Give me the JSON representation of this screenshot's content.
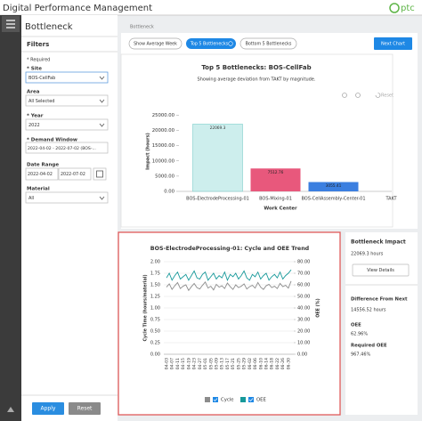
{
  "header": {
    "title": "Digital Performance Management",
    "logo": "ptc"
  },
  "sidebar": {
    "title": "Bottleneck",
    "filters_title": "Filters",
    "required_note": "* Required",
    "site": {
      "label": "* Site",
      "value": "BOS-CellFab"
    },
    "area": {
      "label": "Area",
      "value": "All Selected"
    },
    "year": {
      "label": "* Year",
      "value": "2022"
    },
    "demand_window": {
      "label": "* Demand Window",
      "value": "2022-04-02 - 2022-07-02 (BOS-..."
    },
    "date_range": {
      "label": "Date Range",
      "from": "2022-04-02",
      "to": "2022-07-02"
    },
    "material": {
      "label": "Material",
      "value": "All"
    },
    "apply": "Apply",
    "reset": "Reset"
  },
  "main": {
    "breadcrumb": "Bottleneck",
    "tabs": [
      "Show Average Week",
      "Top 5 Bottlenecks",
      "Bottom 5 Bottlenecks"
    ],
    "next_chart": "Next Chart",
    "toolbar_reset": "Reset"
  },
  "chart_data": [
    {
      "type": "bar",
      "title": "Top 5 Bottlenecks: BOS-CellFab",
      "subtitle": "Showing average deviation from TAKT by magnitude.",
      "x_label": "Work Center",
      "y_label": "Impact (hours)",
      "categories": [
        "BOS-ElectrodeProcessing-01",
        "BOS-Mixing-01",
        "BOS-CellAssembly-Center-01",
        "TAKT"
      ],
      "values": [
        22069.3,
        7512.76,
        3055.41,
        null
      ],
      "colors": [
        "#cdeeed",
        "#e8587c",
        "#3b7fe0",
        null
      ],
      "ylim": [
        0,
        26000
      ],
      "yticks": [
        {
          "value": 0,
          "label": "0.00"
        },
        {
          "value": 5000,
          "label": "5000.00"
        },
        {
          "value": 10000,
          "label": "10000.00"
        },
        {
          "value": 15000,
          "label": "15000.00"
        },
        {
          "value": 20000,
          "label": "20000.00"
        },
        {
          "value": 25000,
          "label": "25000.00"
        }
      ]
    },
    {
      "type": "line",
      "title": "BOS-ElectrodeProcessing-01: Cycle and OEE Trend",
      "y_label": "Cycle Time (hours/material)",
      "y2_label": "OEE (%)",
      "categories": [
        "04-03",
        null,
        "04-07",
        null,
        "04-11",
        null,
        "04-15",
        null,
        "04-19",
        null,
        "04-23",
        null,
        "04-27",
        null,
        "05-01",
        null,
        "05-05",
        null,
        "05-09",
        null,
        "05-13",
        null,
        "05-17",
        null,
        "05-21",
        null,
        "05-25",
        null,
        "05-29",
        null,
        "06-02",
        null,
        "06-06",
        null,
        "06-10",
        null,
        "06-14",
        null,
        "06-18",
        null,
        "06-22",
        null,
        "06-26",
        null,
        "06-30",
        null
      ],
      "series": [
        {
          "name": "Cycle",
          "color": "#8c8c8c",
          "values": [
            1.45,
            1.52,
            1.4,
            1.48,
            1.55,
            1.42,
            1.47,
            1.5,
            1.38,
            1.46,
            1.53,
            1.44,
            1.41,
            1.49,
            1.56,
            1.43,
            1.47,
            1.39,
            1.51,
            1.45,
            1.48,
            1.42,
            1.54,
            1.46,
            1.4,
            1.5,
            1.44,
            1.47,
            1.52,
            1.41,
            1.46,
            1.49,
            1.43,
            1.55,
            1.45,
            1.4,
            1.48,
            1.51,
            1.44,
            1.47,
            1.42,
            1.53,
            1.46,
            1.49,
            1.43,
            1.58
          ]
        },
        {
          "name": "OEE",
          "color": "#17999a",
          "axis": "y2",
          "values": [
            66,
            70,
            64,
            68,
            71,
            65,
            67,
            69,
            64,
            68,
            72,
            66,
            65,
            69,
            71,
            64,
            67,
            70,
            65,
            68,
            66,
            71,
            64,
            69,
            67,
            70,
            65,
            68,
            72,
            66,
            64,
            69,
            67,
            71,
            65,
            68,
            70,
            64,
            67,
            69,
            66,
            71,
            65,
            68,
            70,
            73
          ]
        }
      ],
      "ylim": [
        0,
        2
      ],
      "yticks": [
        {
          "value": 0,
          "label": "0.00"
        },
        {
          "value": 0.25,
          "label": "0.25"
        },
        {
          "value": 0.5,
          "label": "0.50"
        },
        {
          "value": 0.75,
          "label": "0.75"
        },
        {
          "value": 1,
          "label": "1.00"
        },
        {
          "value": 1.25,
          "label": "1.25"
        },
        {
          "value": 1.5,
          "label": "1.50"
        },
        {
          "value": 1.75,
          "label": "1.75"
        },
        {
          "value": 2,
          "label": "2.00"
        }
      ],
      "y2lim": [
        0,
        80
      ],
      "y2ticks": [
        {
          "value": 0,
          "label": "0.00"
        },
        {
          "value": 10,
          "label": "10.00"
        },
        {
          "value": 20,
          "label": "20.00"
        },
        {
          "value": 30,
          "label": "30.00"
        },
        {
          "value": 40,
          "label": "40.00"
        },
        {
          "value": 50,
          "label": "50.00"
        },
        {
          "value": 60,
          "label": "60.00"
        },
        {
          "value": 70,
          "label": "70.00"
        },
        {
          "value": 80,
          "label": "80.00"
        }
      ],
      "grid": true
    }
  ],
  "impact_panel": {
    "title": "Bottleneck Impact",
    "impact": "22069.3 hours",
    "button": "View Details",
    "difference_label": "Difference From Next",
    "difference": "14556.52 hours",
    "oee_label": "OEE",
    "oee": "62.96%",
    "required_oee_label": "Required OEE",
    "required_oee": "967.46%"
  }
}
